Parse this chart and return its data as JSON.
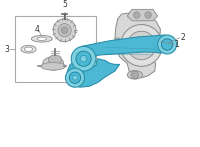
{
  "bg_color": "#ffffff",
  "line_color": "#888888",
  "label_color": "#333333",
  "blue_fill": "#4db8d4",
  "blue_edge": "#2a90aa",
  "gray_fill": "#d8d8d8",
  "gray_edge": "#888888",
  "gray_dark": "#b0b0b0",
  "box_edge": "#aaaaaa",
  "figsize": [
    2.0,
    1.47
  ],
  "dpi": 100
}
